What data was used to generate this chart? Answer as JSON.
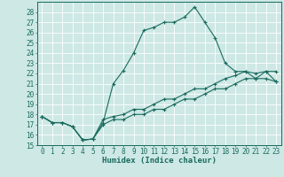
{
  "xlabel": "Humidex (Indice chaleur)",
  "bg_color": "#cde8e5",
  "line_color": "#1a6b5e",
  "grid_color": "#ffffff",
  "xlim": [
    -0.5,
    23.5
  ],
  "ylim": [
    15,
    29
  ],
  "xticks": [
    0,
    1,
    2,
    3,
    4,
    5,
    6,
    7,
    8,
    9,
    10,
    11,
    12,
    13,
    14,
    15,
    16,
    17,
    18,
    19,
    20,
    21,
    22,
    23
  ],
  "yticks": [
    15,
    16,
    17,
    18,
    19,
    20,
    21,
    22,
    23,
    24,
    25,
    26,
    27,
    28
  ],
  "curve1_x": [
    0,
    1,
    2,
    3,
    4,
    5,
    6,
    7,
    8,
    9,
    10,
    11,
    12,
    13,
    14,
    15,
    16,
    17,
    18,
    19,
    20,
    21,
    22,
    23
  ],
  "curve1_y": [
    17.8,
    17.2,
    17.2,
    16.8,
    15.5,
    15.6,
    17.2,
    21.0,
    22.3,
    24.0,
    26.2,
    26.5,
    27.0,
    27.0,
    27.5,
    28.5,
    27.0,
    25.5,
    23.0,
    22.2,
    22.2,
    21.5,
    22.2,
    21.2
  ],
  "curve2_x": [
    0,
    1,
    2,
    3,
    4,
    5,
    6,
    7,
    8,
    9,
    10,
    11,
    12,
    13,
    14,
    15,
    16,
    17,
    18,
    19,
    20,
    21,
    22,
    23
  ],
  "curve2_y": [
    17.8,
    17.2,
    17.2,
    16.8,
    15.5,
    15.6,
    17.5,
    17.8,
    18.0,
    18.5,
    18.5,
    19.0,
    19.5,
    19.5,
    20.0,
    20.5,
    20.5,
    21.0,
    21.5,
    21.8,
    22.2,
    22.0,
    22.2,
    22.2
  ],
  "curve3_x": [
    0,
    1,
    2,
    3,
    4,
    5,
    6,
    7,
    8,
    9,
    10,
    11,
    12,
    13,
    14,
    15,
    16,
    17,
    18,
    19,
    20,
    21,
    22,
    23
  ],
  "curve3_y": [
    17.8,
    17.2,
    17.2,
    16.8,
    15.5,
    15.6,
    17.0,
    17.5,
    17.5,
    18.0,
    18.0,
    18.5,
    18.5,
    19.0,
    19.5,
    19.5,
    20.0,
    20.5,
    20.5,
    21.0,
    21.5,
    21.5,
    21.5,
    21.2
  ],
  "tick_fontsize": 5.5,
  "xlabel_fontsize": 6.5,
  "linewidth": 0.8,
  "markersize": 2.5
}
